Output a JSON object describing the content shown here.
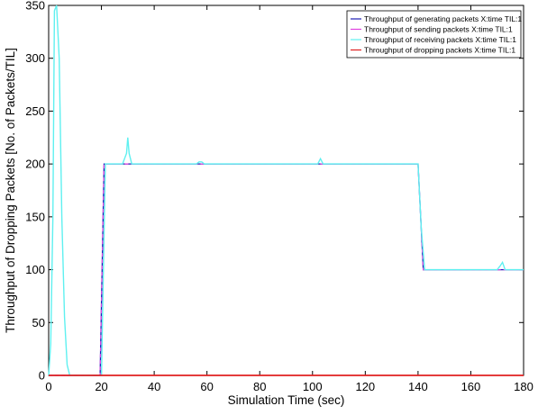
{
  "chart_data": {
    "type": "line",
    "title": "",
    "xlabel": "Simulation Time (sec)",
    "ylabel": "Throughput of Dropping Packets [No. of Packets/TIL]",
    "xlim": [
      0,
      180
    ],
    "ylim": [
      0,
      350
    ],
    "xticks": [
      0,
      20,
      40,
      60,
      80,
      100,
      120,
      140,
      160,
      180
    ],
    "yticks": [
      0,
      50,
      100,
      150,
      200,
      250,
      300,
      350
    ],
    "grid": false,
    "legend_position": "top-right",
    "series": [
      {
        "name": "Throughput of generating packets X:time TIL:1",
        "color": "#1f1fb4",
        "x": [
          0,
          19.5,
          21,
          140,
          142,
          180
        ],
        "y": [
          0,
          0,
          200,
          200,
          100,
          100
        ]
      },
      {
        "name": "Throughput of sending packets X:time TIL:1",
        "color": "#e040e0",
        "x": [
          0,
          19.5,
          21,
          140,
          142,
          180
        ],
        "y": [
          0,
          0,
          200,
          200,
          100,
          100
        ]
      },
      {
        "name": "Throughput of receiving packets X:time TIL:1",
        "color": "#5ff0f0",
        "x": [
          0,
          0.8,
          1.6,
          2.2,
          3,
          4,
          5,
          6,
          7,
          8,
          19,
          20,
          21.5,
          22,
          28,
          29.5,
          30,
          30.5,
          31.5,
          32,
          56,
          57,
          58,
          59,
          101,
          102,
          103,
          104,
          105,
          140,
          141.2,
          142.5,
          143,
          169,
          170,
          171,
          172,
          173,
          180
        ],
        "y": [
          0,
          30,
          150,
          345,
          350,
          300,
          150,
          55,
          10,
          0,
          0,
          0,
          200,
          200,
          200,
          210,
          225,
          210,
          200,
          200,
          200,
          202,
          202,
          200,
          200,
          200,
          205,
          200,
          200,
          200,
          140,
          100,
          100,
          100,
          100,
          103,
          107,
          100,
          100
        ]
      },
      {
        "name": "Throughput of dropping packets X:time TIL:1",
        "color": "#e02020",
        "x": [
          0,
          180
        ],
        "y": [
          0,
          0
        ]
      }
    ]
  }
}
